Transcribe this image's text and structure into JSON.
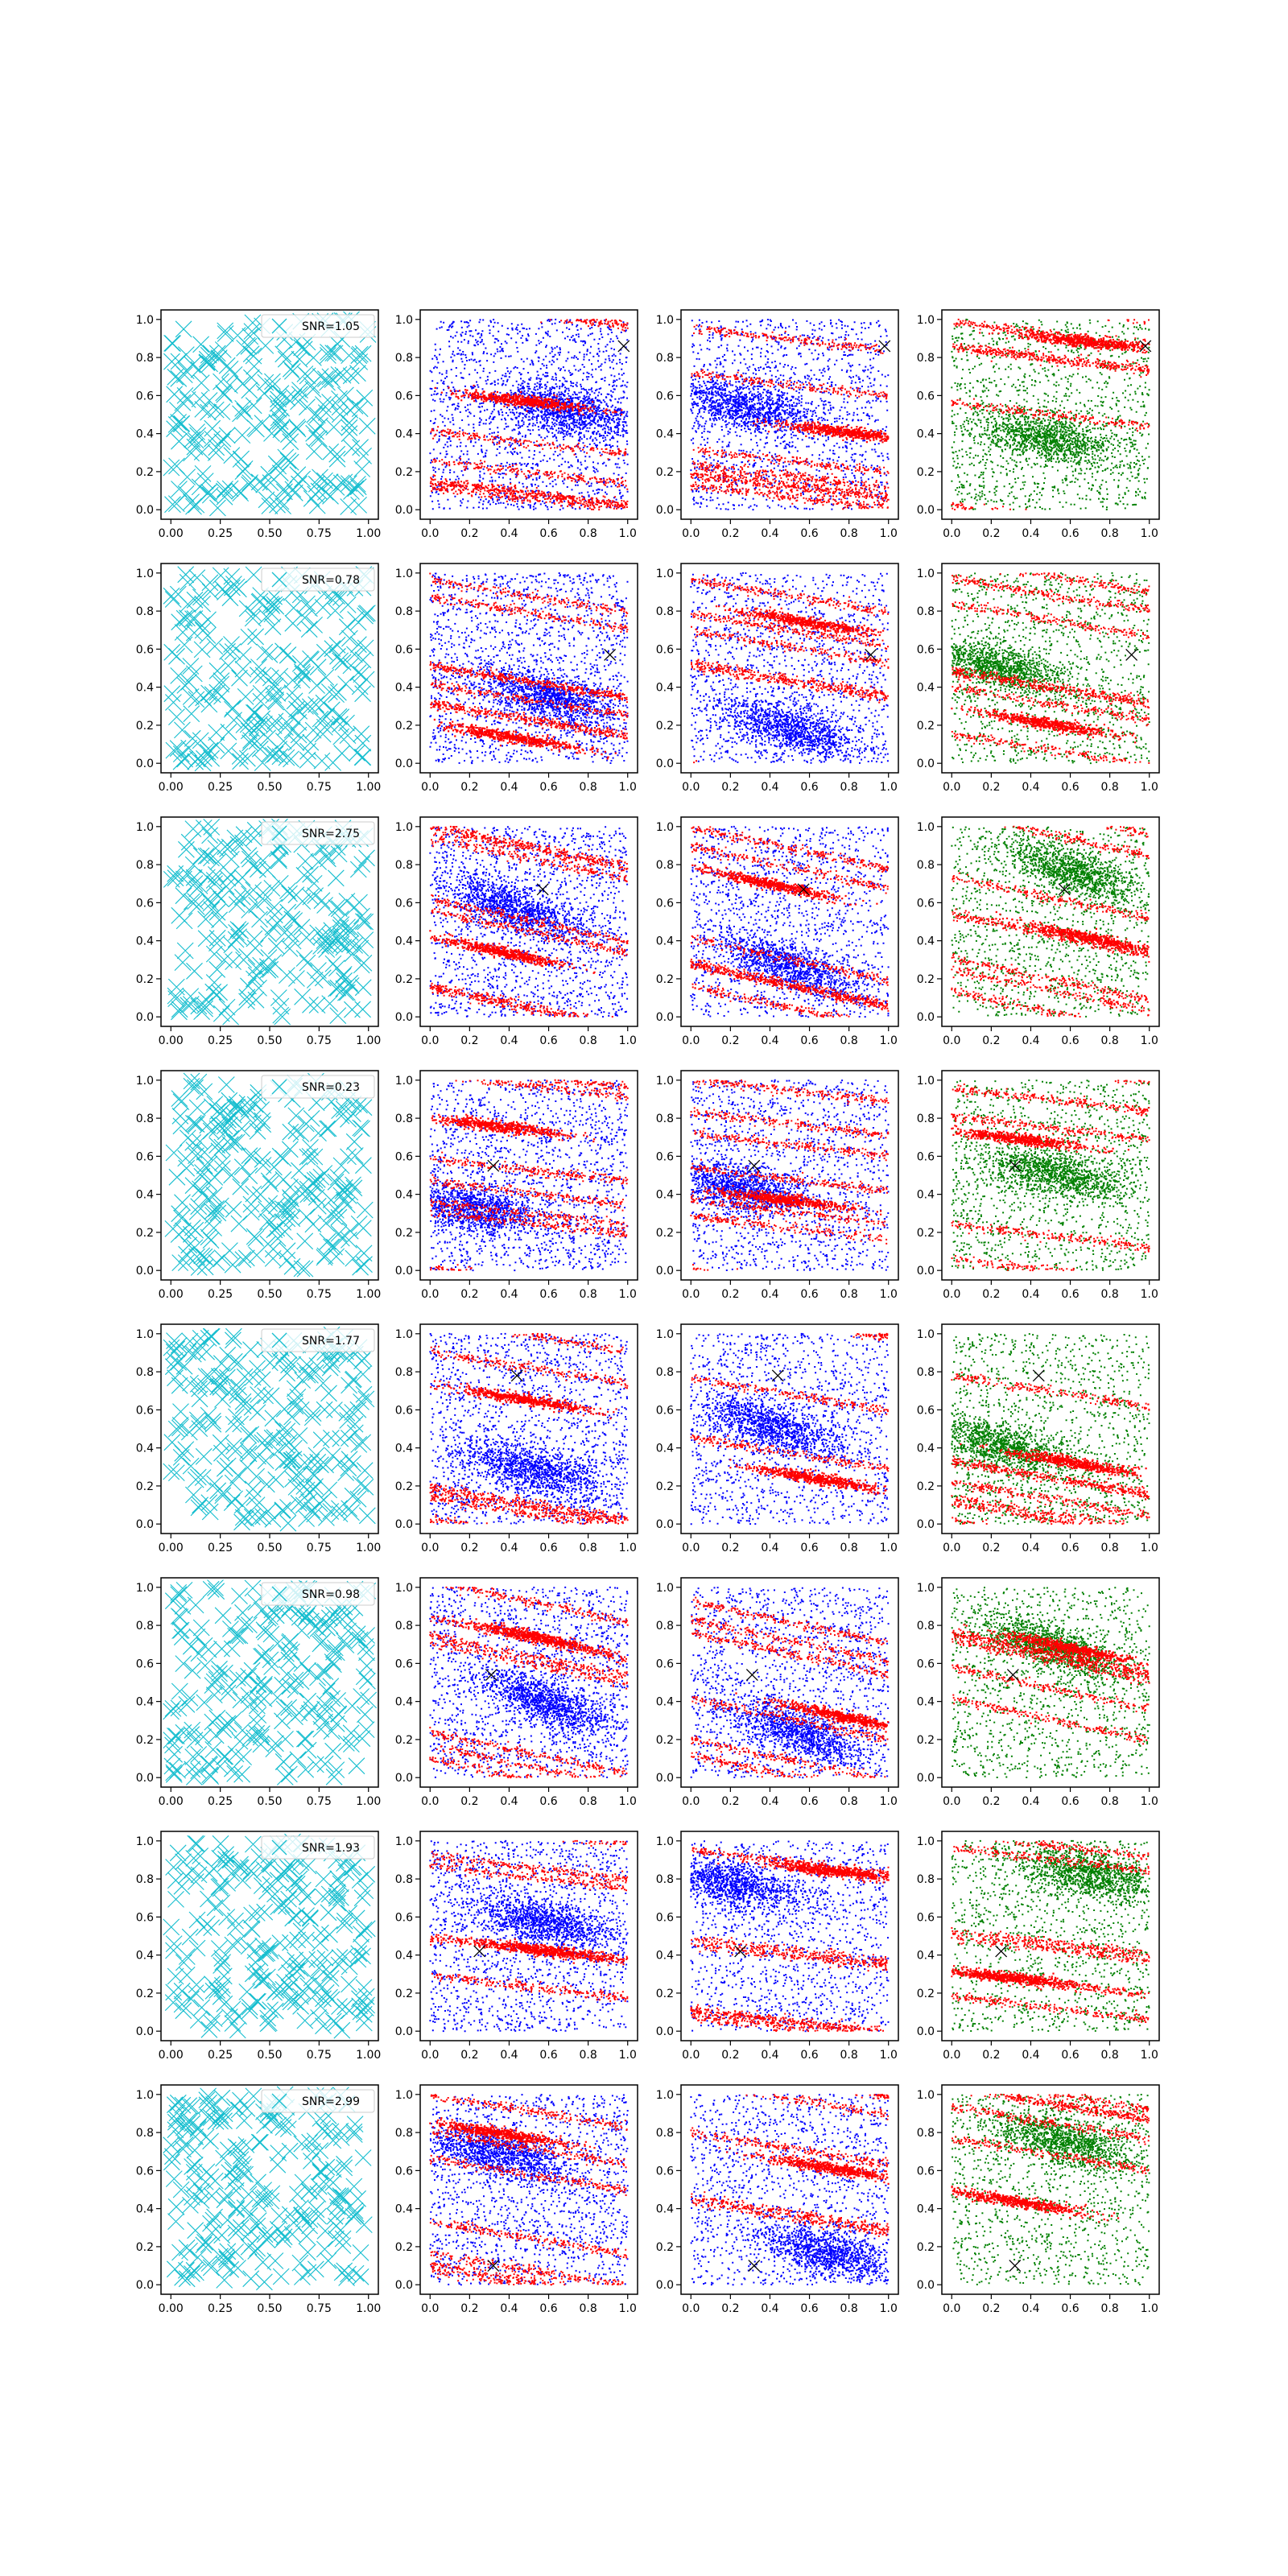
{
  "figure": {
    "background": "#ffffff",
    "rows": 8,
    "cols": 4
  },
  "chart_data": {
    "type": "scatter",
    "title": "",
    "xlabel": "",
    "ylabel": "",
    "xlim": [
      -0.05,
      1.05
    ],
    "ylim": [
      -0.05,
      1.05
    ],
    "col0_xticks": [
      "0.00",
      "0.25",
      "0.50",
      "0.75",
      "1.00"
    ],
    "other_xticks": [
      "0.0",
      "0.2",
      "0.4",
      "0.6",
      "0.8",
      "1.0"
    ],
    "yticks": [
      "0.0",
      "0.2",
      "0.4",
      "0.6",
      "0.8",
      "1.0"
    ],
    "colors": {
      "cyan": "#17becf",
      "blue": "#0000ff",
      "red": "#ff0000",
      "green": "#008000",
      "marker": "#000000"
    },
    "rows": [
      {
        "snr_label": "SNR=1.05",
        "marker_x": 0.98,
        "marker_y": 0.86
      },
      {
        "snr_label": "SNR=0.78",
        "marker_x": 0.91,
        "marker_y": 0.57
      },
      {
        "snr_label": "SNR=2.75",
        "marker_x": 0.57,
        "marker_y": 0.67
      },
      {
        "snr_label": "SNR=0.23",
        "marker_x": 0.32,
        "marker_y": 0.55
      },
      {
        "snr_label": "SNR=1.77",
        "marker_x": 0.44,
        "marker_y": 0.78
      },
      {
        "snr_label": "SNR=0.98",
        "marker_x": 0.31,
        "marker_y": 0.54
      },
      {
        "snr_label": "SNR=1.93",
        "marker_x": 0.25,
        "marker_y": 0.42
      },
      {
        "snr_label": "SNR=2.99",
        "marker_x": 0.32,
        "marker_y": 0.1
      }
    ]
  }
}
